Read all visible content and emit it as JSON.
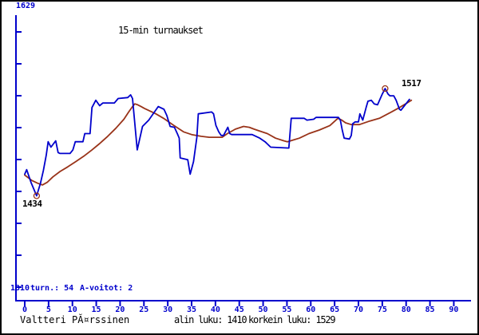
{
  "window": {
    "background": "#ffffff",
    "border_color": "#000000"
  },
  "colors": {
    "axis_blue": "#0000cc",
    "series_blue": "#0000cc",
    "series_brown": "#993319",
    "text_black": "#000000"
  },
  "chart_data": {
    "type": "line",
    "title": "15-min turnaukset",
    "x_axis": {
      "ticks": [
        0,
        5,
        10,
        15,
        20,
        25,
        30,
        35,
        40,
        45,
        50,
        55,
        60,
        65,
        70,
        75,
        80,
        85,
        90
      ],
      "range": [
        0,
        94
      ],
      "grid": false
    },
    "y_axis": {
      "top_label": "1629",
      "bottom_label": "1310",
      "range": [
        1310,
        1629
      ],
      "grid": false
    },
    "series": [
      {
        "name": "tournament-rating",
        "color": "#0000cc",
        "points": [
          [
            0,
            1434
          ],
          [
            0.4,
            1439
          ],
          [
            1.3,
            1425
          ],
          [
            2.5,
            1410
          ],
          [
            3.3,
            1424
          ],
          [
            3.9,
            1438
          ],
          [
            4.5,
            1455
          ],
          [
            4.9,
            1470
          ],
          [
            5.5,
            1464
          ],
          [
            6.5,
            1471
          ],
          [
            7.0,
            1458
          ],
          [
            7.4,
            1457
          ],
          [
            9.5,
            1457
          ],
          [
            10.1,
            1461
          ],
          [
            10.6,
            1470
          ],
          [
            12.2,
            1470
          ],
          [
            12.6,
            1479
          ],
          [
            13.7,
            1479
          ],
          [
            14.1,
            1508
          ],
          [
            14.9,
            1516
          ],
          [
            15.7,
            1510
          ],
          [
            16.4,
            1513
          ],
          [
            18.8,
            1513
          ],
          [
            19.6,
            1518
          ],
          [
            21.6,
            1519
          ],
          [
            22.2,
            1522
          ],
          [
            22.6,
            1518
          ],
          [
            23.6,
            1461
          ],
          [
            24.7,
            1487
          ],
          [
            26.0,
            1494
          ],
          [
            28.0,
            1509
          ],
          [
            29.2,
            1506
          ],
          [
            29.8,
            1499
          ],
          [
            30.5,
            1487
          ],
          [
            31.4,
            1486
          ],
          [
            32.0,
            1479
          ],
          [
            32.4,
            1474
          ],
          [
            32.6,
            1452
          ],
          [
            34.2,
            1450
          ],
          [
            34.7,
            1434
          ],
          [
            35.4,
            1448
          ],
          [
            36.1,
            1475
          ],
          [
            36.4,
            1501
          ],
          [
            39.2,
            1503
          ],
          [
            39.6,
            1501
          ],
          [
            40.1,
            1488
          ],
          [
            40.7,
            1481
          ],
          [
            41.2,
            1477
          ],
          [
            41.7,
            1477
          ],
          [
            42.2,
            1482
          ],
          [
            42.6,
            1486
          ],
          [
            43.0,
            1479
          ],
          [
            43.4,
            1478
          ],
          [
            47.7,
            1478
          ],
          [
            49.3,
            1474
          ],
          [
            50.4,
            1470
          ],
          [
            51.6,
            1464
          ],
          [
            55.4,
            1463
          ],
          [
            55.9,
            1496
          ],
          [
            58.6,
            1496
          ],
          [
            59.2,
            1494
          ],
          [
            60.6,
            1495
          ],
          [
            61.1,
            1497
          ],
          [
            65.8,
            1497
          ],
          [
            66.2,
            1494
          ],
          [
            66.6,
            1483
          ],
          [
            67.0,
            1474
          ],
          [
            68.1,
            1473
          ],
          [
            68.5,
            1477
          ],
          [
            68.8,
            1490
          ],
          [
            69.3,
            1492
          ],
          [
            70.0,
            1492
          ],
          [
            70.3,
            1501
          ],
          [
            70.9,
            1494
          ],
          [
            71.6,
            1508
          ],
          [
            72.0,
            1515
          ],
          [
            72.7,
            1516
          ],
          [
            73.3,
            1512
          ],
          [
            74.0,
            1511
          ],
          [
            75.0,
            1523
          ],
          [
            75.6,
            1529
          ],
          [
            76.2,
            1523
          ],
          [
            76.6,
            1521
          ],
          [
            77.4,
            1521
          ],
          [
            77.9,
            1516
          ],
          [
            78.6,
            1506
          ],
          [
            78.9,
            1505
          ],
          [
            80.7,
            1517
          ]
        ]
      },
      {
        "name": "rating-trend",
        "color": "#993319",
        "points": [
          [
            0,
            1433
          ],
          [
            1.5,
            1427
          ],
          [
            2.7,
            1424
          ],
          [
            3.7,
            1422
          ],
          [
            4.7,
            1425
          ],
          [
            5.9,
            1431
          ],
          [
            7.4,
            1437
          ],
          [
            9.0,
            1442
          ],
          [
            10.7,
            1448
          ],
          [
            12.4,
            1454
          ],
          [
            14.1,
            1461
          ],
          [
            15.7,
            1468
          ],
          [
            17.4,
            1476
          ],
          [
            19.1,
            1485
          ],
          [
            20.8,
            1495
          ],
          [
            21.8,
            1503
          ],
          [
            22.6,
            1509
          ],
          [
            23.1,
            1512
          ],
          [
            23.7,
            1511
          ],
          [
            24.4,
            1509
          ],
          [
            25.1,
            1507
          ],
          [
            25.9,
            1505
          ],
          [
            27.5,
            1501
          ],
          [
            29.1,
            1496
          ],
          [
            31.3,
            1488
          ],
          [
            33.3,
            1481
          ],
          [
            35.0,
            1478
          ],
          [
            37.0,
            1476
          ],
          [
            38.7,
            1475
          ],
          [
            40.0,
            1475
          ],
          [
            41.4,
            1475
          ],
          [
            42.5,
            1479
          ],
          [
            44.2,
            1484
          ],
          [
            45.9,
            1487
          ],
          [
            47.1,
            1486
          ],
          [
            48.1,
            1484
          ],
          [
            49.2,
            1482
          ],
          [
            50.9,
            1479
          ],
          [
            52.6,
            1474
          ],
          [
            54.4,
            1471
          ],
          [
            55.1,
            1470
          ],
          [
            56.4,
            1472
          ],
          [
            57.6,
            1474
          ],
          [
            59.6,
            1479
          ],
          [
            61.8,
            1483
          ],
          [
            64.0,
            1488
          ],
          [
            65.7,
            1496
          ],
          [
            66.5,
            1494
          ],
          [
            67.3,
            1491
          ],
          [
            68.5,
            1489
          ],
          [
            70.2,
            1489
          ],
          [
            72.4,
            1493
          ],
          [
            74.4,
            1496
          ],
          [
            76.9,
            1503
          ],
          [
            78.6,
            1508
          ],
          [
            79.9,
            1512
          ],
          [
            81.1,
            1516
          ]
        ]
      }
    ],
    "markers": [
      {
        "x": 2.5,
        "value": 1410,
        "label": "1434"
      },
      {
        "x": 75.6,
        "value": 1529,
        "label": "1517"
      }
    ],
    "stats_line": {
      "tournaments": "turn.: 54",
      "a_wins": "A-voitot: 2"
    },
    "footer": {
      "player_name": "Valtteri PĂ¤rssinen",
      "lowest": "alin luku: 1410",
      "highest": "korkein luku: 1529"
    }
  }
}
